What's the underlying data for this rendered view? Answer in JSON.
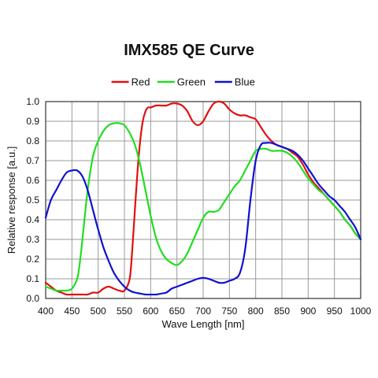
{
  "chart_data": {
    "type": "line",
    "title": "IMX585 QE Curve",
    "xlabel": "Wave Length [nm]",
    "ylabel": "Relative response [a.u.]",
    "xlim": [
      400,
      1000
    ],
    "ylim": [
      0.0,
      1.0
    ],
    "x_ticks": [
      "400",
      "450",
      "500",
      "550",
      "600",
      "650",
      "700",
      "750",
      "800",
      "850",
      "900",
      "950",
      "1000"
    ],
    "y_ticks": [
      "0.0",
      "0.1",
      "0.2",
      "0.3",
      "0.4",
      "0.5",
      "0.6",
      "0.7",
      "0.8",
      "0.9",
      "1.0"
    ],
    "grid": true,
    "legend_position": "top-center",
    "series": [
      {
        "name": "Red",
        "color": "#e01010",
        "x": [
          400,
          410,
          420,
          430,
          440,
          450,
          460,
          470,
          480,
          490,
          500,
          510,
          520,
          530,
          540,
          550,
          560,
          565,
          570,
          575,
          580,
          585,
          590,
          595,
          600,
          610,
          620,
          630,
          640,
          650,
          660,
          670,
          680,
          690,
          700,
          710,
          720,
          730,
          740,
          750,
          760,
          770,
          780,
          790,
          800,
          810,
          820,
          830,
          840,
          850,
          860,
          870,
          880,
          890,
          900,
          910,
          920,
          930,
          940,
          950,
          960,
          970,
          980,
          990,
          1000
        ],
        "y": [
          0.08,
          0.06,
          0.04,
          0.03,
          0.02,
          0.02,
          0.02,
          0.02,
          0.02,
          0.03,
          0.03,
          0.05,
          0.06,
          0.05,
          0.04,
          0.04,
          0.1,
          0.25,
          0.45,
          0.65,
          0.8,
          0.9,
          0.95,
          0.97,
          0.97,
          0.98,
          0.98,
          0.98,
          0.99,
          0.99,
          0.98,
          0.95,
          0.9,
          0.88,
          0.9,
          0.95,
          0.99,
          1.0,
          0.99,
          0.96,
          0.94,
          0.93,
          0.93,
          0.92,
          0.91,
          0.87,
          0.83,
          0.8,
          0.78,
          0.77,
          0.76,
          0.74,
          0.72,
          0.68,
          0.63,
          0.59,
          0.56,
          0.53,
          0.5,
          0.47,
          0.44,
          0.4,
          0.37,
          0.33,
          0.3
        ]
      },
      {
        "name": "Green",
        "color": "#22dd22",
        "x": [
          400,
          410,
          420,
          430,
          440,
          450,
          460,
          465,
          470,
          480,
          490,
          500,
          510,
          520,
          530,
          540,
          550,
          560,
          570,
          580,
          590,
          600,
          610,
          620,
          630,
          640,
          650,
          660,
          670,
          680,
          690,
          700,
          710,
          720,
          730,
          740,
          750,
          760,
          770,
          780,
          790,
          800,
          810,
          820,
          830,
          840,
          850,
          860,
          870,
          880,
          890,
          900,
          910,
          920,
          930,
          940,
          950,
          960,
          970,
          980,
          990,
          1000
        ],
        "y": [
          0.06,
          0.05,
          0.04,
          0.04,
          0.04,
          0.05,
          0.1,
          0.18,
          0.3,
          0.55,
          0.72,
          0.8,
          0.85,
          0.88,
          0.89,
          0.89,
          0.88,
          0.84,
          0.78,
          0.68,
          0.55,
          0.42,
          0.31,
          0.24,
          0.2,
          0.18,
          0.17,
          0.19,
          0.23,
          0.29,
          0.35,
          0.41,
          0.44,
          0.44,
          0.45,
          0.49,
          0.53,
          0.57,
          0.6,
          0.65,
          0.7,
          0.75,
          0.76,
          0.76,
          0.75,
          0.75,
          0.75,
          0.74,
          0.72,
          0.69,
          0.65,
          0.61,
          0.58,
          0.55,
          0.53,
          0.5,
          0.47,
          0.44,
          0.4,
          0.37,
          0.33,
          0.3
        ]
      },
      {
        "name": "Blue",
        "color": "#1010d0",
        "x": [
          400,
          410,
          420,
          430,
          440,
          450,
          460,
          470,
          480,
          490,
          500,
          510,
          520,
          530,
          540,
          550,
          560,
          570,
          580,
          590,
          600,
          610,
          620,
          630,
          640,
          650,
          660,
          670,
          680,
          690,
          700,
          710,
          720,
          730,
          740,
          750,
          760,
          770,
          780,
          790,
          800,
          810,
          820,
          830,
          840,
          850,
          860,
          870,
          880,
          890,
          900,
          910,
          920,
          930,
          940,
          950,
          960,
          970,
          980,
          990,
          1000
        ],
        "y": [
          0.41,
          0.5,
          0.55,
          0.6,
          0.64,
          0.65,
          0.65,
          0.62,
          0.55,
          0.45,
          0.35,
          0.26,
          0.19,
          0.13,
          0.09,
          0.06,
          0.04,
          0.03,
          0.025,
          0.02,
          0.02,
          0.02,
          0.025,
          0.03,
          0.05,
          0.06,
          0.07,
          0.08,
          0.09,
          0.1,
          0.105,
          0.1,
          0.09,
          0.08,
          0.08,
          0.09,
          0.1,
          0.13,
          0.25,
          0.5,
          0.7,
          0.78,
          0.79,
          0.79,
          0.78,
          0.77,
          0.76,
          0.75,
          0.73,
          0.7,
          0.66,
          0.62,
          0.58,
          0.55,
          0.52,
          0.5,
          0.47,
          0.44,
          0.4,
          0.36,
          0.3
        ]
      }
    ]
  }
}
